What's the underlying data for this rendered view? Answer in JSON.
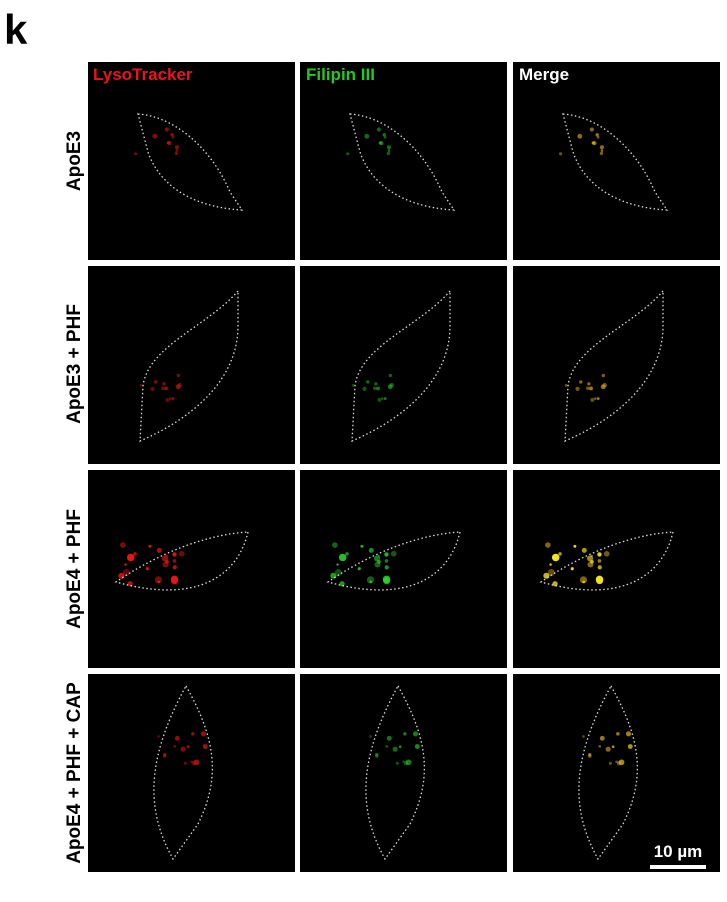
{
  "panel_label": "k",
  "columns": [
    "LysoTracker",
    "Filipin III",
    "Merge"
  ],
  "rows": [
    "ApoE3",
    "ApoE3 + PHF",
    "ApoE4 + PHF",
    "ApoE4 + PHF + CAP"
  ],
  "scale_bar": "10 µm"
}
